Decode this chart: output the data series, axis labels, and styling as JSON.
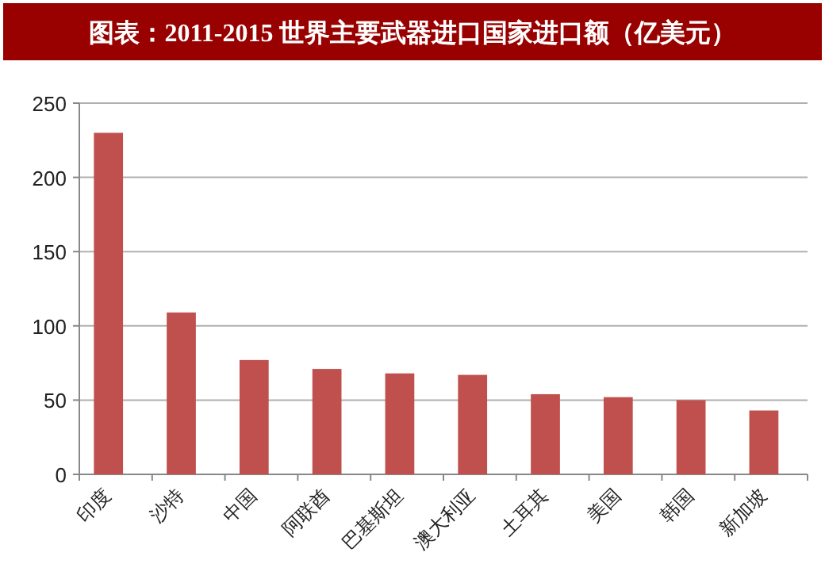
{
  "chart_data": {
    "type": "bar",
    "title": "图表：2011-2015 世界主要武器进口国家进口额（亿美元）",
    "categories": [
      "印度",
      "沙特",
      "中国",
      "阿联酋",
      "巴基斯坦",
      "澳大利亚",
      "土耳其",
      "美国",
      "韩国",
      "新加坡"
    ],
    "values": [
      230,
      109,
      77,
      71,
      68,
      67,
      54,
      52,
      50,
      43
    ],
    "color": "#c0504d",
    "ylim": [
      0,
      250
    ],
    "yticks": [
      0,
      50,
      100,
      150,
      200,
      250
    ],
    "grid": "y"
  }
}
